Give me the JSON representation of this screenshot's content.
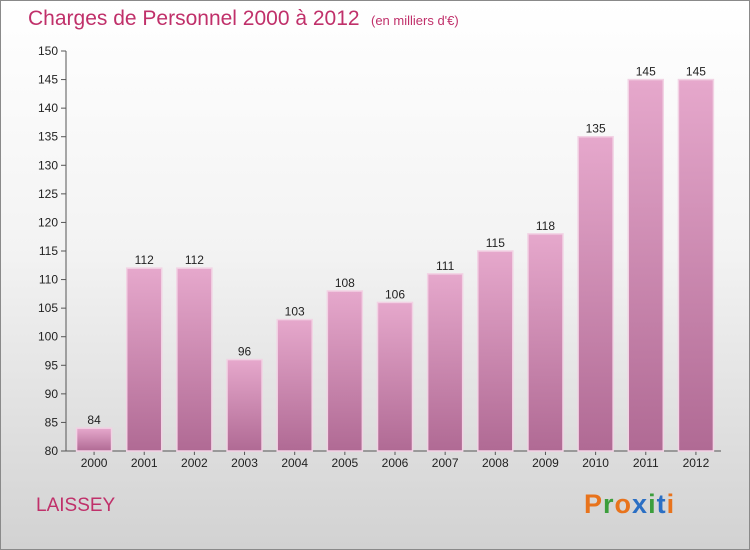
{
  "header": {
    "title": "Charges de Personnel 2000 à 2012",
    "subtitle": "(en milliers d'€)"
  },
  "footer": {
    "place": "LAISSEY",
    "logo": {
      "text": "Proxiti",
      "letter_colors": [
        "#e8731c",
        "#3c9e3c",
        "#e8731c",
        "#2b6fc4",
        "#3c9e3c",
        "#2b6fc4",
        "#e8731c"
      ]
    }
  },
  "colors": {
    "bar_light": "#e6a8cc",
    "bar_dark": "#b06a94",
    "bar_edge": "#f2d2e4",
    "text_accent": "#c0306a"
  },
  "chart_data": {
    "type": "bar",
    "categories": [
      "2000",
      "2001",
      "2002",
      "2003",
      "2004",
      "2005",
      "2006",
      "2007",
      "2008",
      "2009",
      "2010",
      "2011",
      "2012"
    ],
    "values": [
      84,
      112,
      112,
      96,
      103,
      108,
      106,
      111,
      115,
      118,
      135,
      145,
      145
    ],
    "data_labels": [
      "84",
      "112",
      "112",
      "96",
      "103",
      "108",
      "106",
      "111",
      "115",
      "118",
      "135",
      "145",
      "145"
    ],
    "ylim": [
      80,
      150
    ],
    "yticks": [
      "80",
      "85",
      "90",
      "95",
      "100",
      "105",
      "110",
      "115",
      "120",
      "125",
      "130",
      "135",
      "140",
      "145",
      "150"
    ],
    "title": "Charges de Personnel 2000 à 2012",
    "xlabel": "",
    "ylabel": "",
    "grid": false,
    "legend": "none"
  }
}
